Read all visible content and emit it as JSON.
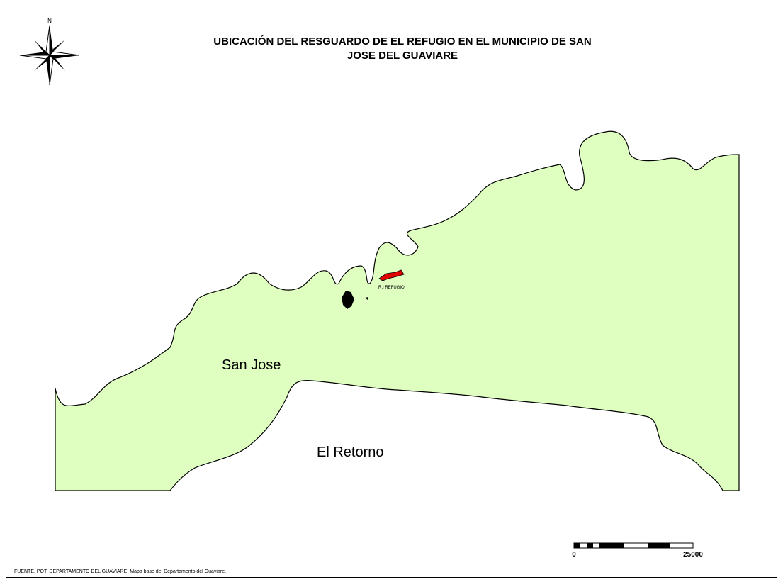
{
  "map": {
    "title_lines": [
      "UBICACIÓN DEL RESGUARDO DE EL REFUGIO EN EL MUNICIPIO DE SAN",
      "JOSE DEL GUAVIARE"
    ],
    "north": "N",
    "labels": {
      "municipality": "San Jose",
      "neighbor": "El Retorno",
      "reserve": "R.I REFUGIO"
    },
    "scale_bar": {
      "start": 0,
      "end": 25000
    },
    "source": "FUENTE. POT, DEPARTAMENTO DEL GUAVIARE. Mapa base del Departamento del Guaviare."
  }
}
